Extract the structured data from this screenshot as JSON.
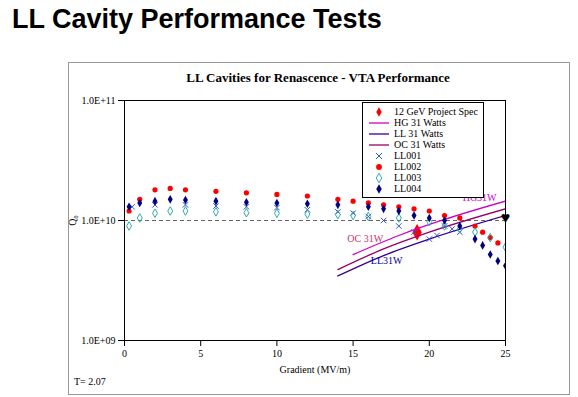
{
  "slide_title": "LL Cavity Performance Tests",
  "chart_data": {
    "type": "scatter",
    "title": "LL Cavities for Renascence - VTA Performance",
    "x_label": "Gradient (MV/m)",
    "y_label": "Q₀",
    "footnote": "T= 2.07",
    "log": "y",
    "grid": true,
    "legend": "top-right",
    "xlim": [
      0,
      25
    ],
    "xticks": [
      0,
      5,
      10,
      15,
      20,
      25
    ],
    "ylim": [
      1000000000,
      100000000000
    ],
    "yticks": [
      {
        "value": 1000000000,
        "label": "1.0E+09"
      },
      {
        "value": 10000000000,
        "label": "1.0E+10"
      },
      {
        "value": 100000000000,
        "label": "1.0E+11"
      }
    ],
    "series": [
      {
        "name": "12 GeV Project Spec",
        "type": "scatter",
        "marker": "diamond",
        "color": "#ff0000",
        "x": [
          19.2
        ],
        "values": [
          8000000000
        ]
      },
      {
        "name": "HG 31 Watts",
        "type": "line",
        "line_style": "solid",
        "color": "#cc00cc",
        "x": [
          15,
          18,
          21,
          25
        ],
        "values": [
          5200000000,
          7500000000,
          10200000000,
          14500000000
        ]
      },
      {
        "name": "LL 31 Watts",
        "type": "line",
        "line_style": "solid",
        "color": "#330099",
        "x": [
          14,
          17,
          20,
          25
        ],
        "values": [
          3450000000,
          5100000000,
          7000000000,
          11000000000
        ]
      },
      {
        "name": "OC 31 Watts",
        "type": "line",
        "line_style": "solid",
        "color": "#990066",
        "x": [
          14,
          17,
          20,
          25
        ],
        "values": [
          3900000000,
          5800000000,
          8000000000,
          12500000000
        ]
      },
      {
        "name": "LL001",
        "type": "scatter",
        "marker": "x",
        "color": "#3355cc",
        "x": [
          0.5,
          2,
          4,
          6,
          8,
          10,
          12,
          14,
          15,
          16,
          17,
          18,
          19,
          20,
          20.5,
          21,
          21.5,
          22
        ],
        "values": [
          13000000000,
          13500000000,
          13500000000,
          13200000000,
          13000000000,
          12800000000,
          12300000000,
          11800000000,
          11500000000,
          10800000000,
          10000000000,
          9000000000,
          8000000000,
          7000000000,
          7500000000,
          9000000000,
          8500000000,
          8000000000
        ]
      },
      {
        "name": "LL002",
        "type": "scatter",
        "marker": "circle",
        "color": "#ff0000",
        "x": [
          0.3,
          1,
          2,
          3,
          4,
          6,
          8,
          10,
          12,
          14,
          15,
          16,
          17,
          18,
          19,
          20,
          21,
          22,
          23,
          23.5,
          24,
          24.5
        ],
        "values": [
          12000000000,
          15000000000,
          18000000000,
          18500000000,
          18000000000,
          17500000000,
          17000000000,
          16500000000,
          16000000000,
          15000000000,
          14500000000,
          14000000000,
          13500000000,
          13000000000,
          12500000000,
          12000000000,
          11000000000,
          10500000000,
          9000000000,
          8000000000,
          7200000000,
          6500000000
        ]
      },
      {
        "name": "LL003",
        "type": "scatter",
        "marker": "diamond_open",
        "color": "#33aaaa",
        "x": [
          0.3,
          1,
          2,
          3,
          4,
          6,
          8,
          10,
          12,
          14,
          15,
          16,
          18,
          20,
          21,
          22,
          23,
          24,
          25
        ],
        "values": [
          9000000000,
          10500000000,
          11500000000,
          12000000000,
          12000000000,
          11800000000,
          11600000000,
          11500000000,
          11300000000,
          11200000000,
          11000000000,
          10800000000,
          10500000000,
          9800000000,
          9000000000,
          8500000000,
          8000000000,
          7200000000,
          6000000000
        ]
      },
      {
        "name": "LL004",
        "type": "scatter",
        "marker": "diamond",
        "color": "#000080",
        "x": [
          0.3,
          1,
          2,
          3,
          4,
          6,
          8,
          10,
          12,
          14,
          16,
          17,
          18,
          19,
          20,
          21,
          22,
          23,
          23.5,
          24,
          24.5,
          25
        ],
        "values": [
          13000000000,
          14000000000,
          14500000000,
          15000000000,
          14800000000,
          14500000000,
          14200000000,
          14000000000,
          13800000000,
          13500000000,
          13000000000,
          12500000000,
          12000000000,
          11000000000,
          10500000000,
          10000000000,
          9000000000,
          7000000000,
          6200000000,
          5200000000,
          4600000000,
          4200000000
        ]
      }
    ],
    "annotations": [
      {
        "text": "HG31W",
        "x": 23.3,
        "y": 15500000000,
        "color": "#cc00cc"
      },
      {
        "text": "OC 31W",
        "x": 15.8,
        "y": 7000000000,
        "color": "#cc3366"
      },
      {
        "text": "LL31W",
        "x": 17.2,
        "y": 4600000000,
        "color": "#000099"
      },
      {
        "text": "♥",
        "x": 25,
        "y": 10500000000,
        "color": "#000000"
      }
    ]
  }
}
